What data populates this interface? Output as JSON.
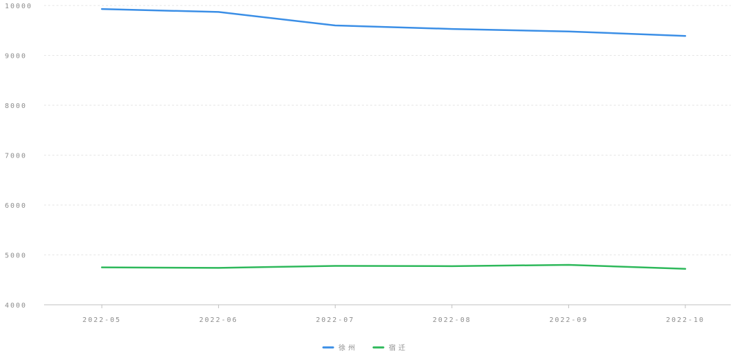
{
  "chart_data": {
    "type": "line",
    "title": "",
    "xlabel": "",
    "ylabel": "",
    "categories": [
      "2022-05",
      "2022-06",
      "2022-07",
      "2022-08",
      "2022-09",
      "2022-10"
    ],
    "ylim": [
      4000,
      10000
    ],
    "yticks": [
      4000,
      5000,
      6000,
      7000,
      8000,
      9000,
      10000
    ],
    "grid": true,
    "legend_position": "bottom-center",
    "series": [
      {
        "name": "徐州",
        "color": "#3a8ee6",
        "values": [
          9930,
          9870,
          9600,
          9530,
          9480,
          9390
        ]
      },
      {
        "name": "宿迁",
        "color": "#2db85a",
        "values": [
          4750,
          4740,
          4780,
          4775,
          4800,
          4720
        ]
      }
    ]
  }
}
